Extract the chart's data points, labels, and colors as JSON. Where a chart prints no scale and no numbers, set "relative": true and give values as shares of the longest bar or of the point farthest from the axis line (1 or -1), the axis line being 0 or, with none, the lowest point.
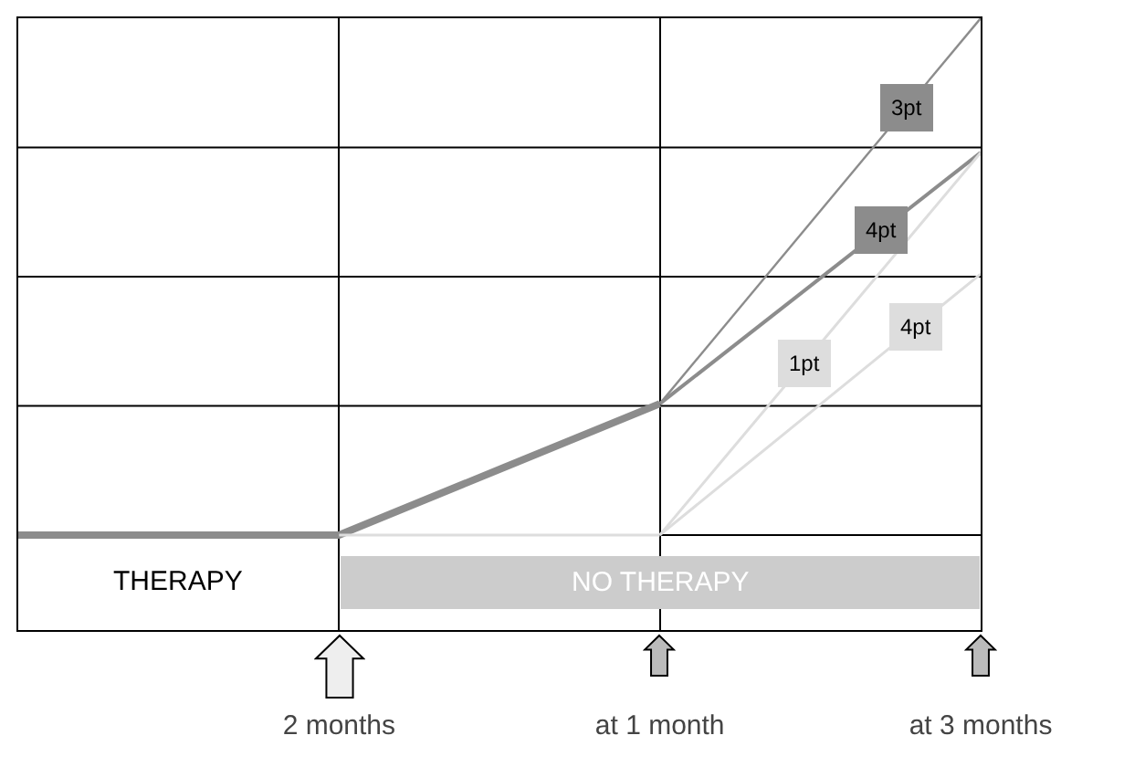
{
  "chart_data": {
    "type": "line",
    "relative": true,
    "categories": [
      null,
      "2 months",
      "at 1 month",
      "at 3 months"
    ],
    "series": [
      {
        "color": "#8c8c8c",
        "values": [
          0,
          0,
          0.254,
          null
        ]
      },
      {
        "color": "#dddddd",
        "values": [
          null,
          0,
          0,
          null
        ]
      },
      {
        "name": "3pt",
        "color": "#8c8c8c",
        "values": [
          null,
          null,
          0.254,
          1.0
        ]
      },
      {
        "name": "4pt",
        "color": "#8c8c8c",
        "values": [
          null,
          null,
          0.254,
          0.74
        ]
      },
      {
        "name": "1pt",
        "color": "#dddddd",
        "values": [
          null,
          null,
          0,
          0.74
        ]
      },
      {
        "name": "4pt",
        "color": "#dddddd",
        "values": [
          null,
          null,
          0,
          0.505
        ]
      }
    ],
    "annotations": [
      "THERAPY",
      "NO THERAPY"
    ],
    "grid": true,
    "legend": false,
    "line_style": "solid",
    "marker": "none"
  }
}
